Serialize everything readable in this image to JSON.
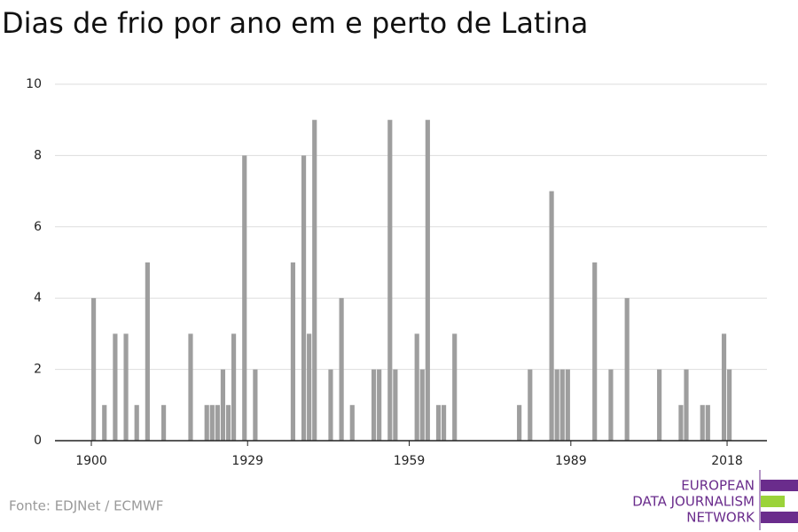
{
  "chart_data": {
    "type": "bar",
    "title": "Dias de frio por ano em e perto de Latina",
    "source": "Fonte: EDJNet / ECMWF",
    "logo": [
      "EUROPEAN",
      "DATA JOURNALISM",
      "NETWORK"
    ],
    "color": "#9e9e9e",
    "x": [
      1900,
      1902,
      1904,
      1906,
      1908,
      1910,
      1913,
      1918,
      1921,
      1922,
      1923,
      1924,
      1925,
      1926,
      1928,
      1930,
      1937,
      1939,
      1940,
      1941,
      1944,
      1946,
      1948,
      1952,
      1953,
      1955,
      1956,
      1960,
      1961,
      1962,
      1964,
      1965,
      1967,
      1979,
      1981,
      1985,
      1986,
      1987,
      1988,
      1993,
      1996,
      1999,
      2005,
      2009,
      2010,
      2013,
      2014,
      2017,
      2018
    ],
    "values": [
      4,
      1,
      3,
      3,
      1,
      5,
      1,
      3,
      1,
      1,
      1,
      2,
      1,
      3,
      8,
      2,
      5,
      8,
      3,
      9,
      2,
      4,
      1,
      2,
      2,
      9,
      2,
      3,
      2,
      9,
      1,
      1,
      3,
      1,
      2,
      7,
      2,
      2,
      2,
      5,
      2,
      4,
      2,
      1,
      2,
      1,
      1,
      3,
      2
    ],
    "xlim": [
      1893.25,
      2025.4
    ],
    "xticks": [
      1900,
      1929,
      1959,
      1989,
      2018
    ],
    "ylim": [
      0,
      10
    ],
    "yticks": [
      0,
      2,
      4,
      6,
      8,
      10
    ],
    "grid": true
  }
}
